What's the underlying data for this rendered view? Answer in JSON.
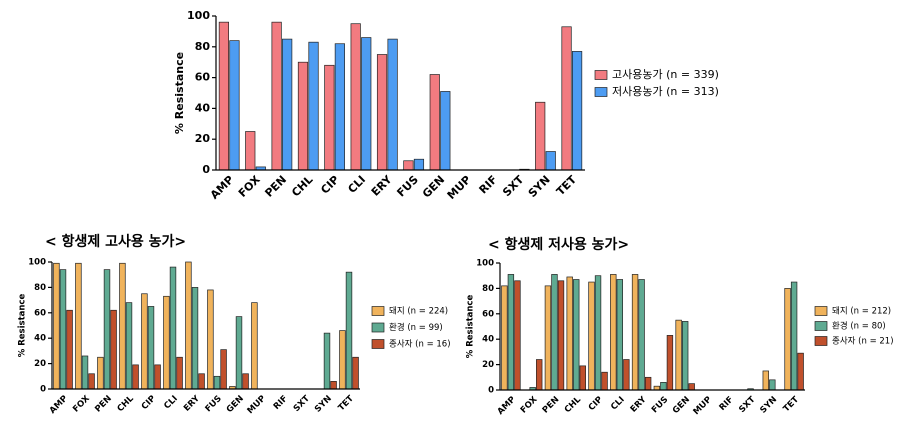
{
  "chart_data": [
    {
      "type": "bar",
      "y_label": "% Resistance",
      "categories": [
        "AMP",
        "FOX",
        "PEN",
        "CHL",
        "CIP",
        "CLI",
        "ERY",
        "FUS",
        "GEN",
        "MUP",
        "RIF",
        "SXT",
        "SYN",
        "TET"
      ],
      "series": [
        {
          "name": "고사용농가 (n = 339)",
          "color": "#f27b80",
          "values": [
            96,
            25,
            96,
            70,
            68,
            95,
            75,
            6,
            62,
            0,
            0,
            0,
            44,
            93
          ]
        },
        {
          "name": "저사용농가 (n = 313)",
          "color": "#4d9cf2",
          "values": [
            84,
            2,
            85,
            83,
            82,
            86,
            85,
            7,
            51,
            0,
            0,
            0.5,
            12,
            77
          ]
        }
      ],
      "ylim": [
        0,
        100
      ],
      "yticks": [
        0,
        20,
        40,
        60,
        80,
        100
      ]
    },
    {
      "type": "bar",
      "title": "< 항생제 고사용 농가>",
      "y_label": "% Resistance",
      "categories": [
        "AMP",
        "FOX",
        "PEN",
        "CHL",
        "CIP",
        "CLI",
        "ERY",
        "FUS",
        "GEN",
        "MUP",
        "RIF",
        "SXT",
        "SYN",
        "TET"
      ],
      "series": [
        {
          "name": "돼지 (n = 224)",
          "color": "#f0b35c",
          "values": [
            99,
            99,
            25,
            99,
            75,
            73,
            100,
            78,
            2,
            68,
            0,
            0,
            0,
            46
          ]
        },
        {
          "name": "환경 (n = 99)",
          "color": "#5faa92",
          "values": [
            94,
            26,
            94,
            68,
            65,
            96,
            80,
            10,
            57,
            0,
            0,
            0,
            44,
            92
          ]
        },
        {
          "name": "종사자 (n = 16)",
          "color": "#c0502c",
          "values": [
            62,
            12,
            62,
            19,
            19,
            25,
            12,
            31,
            12,
            0,
            0,
            0,
            6,
            25
          ]
        }
      ],
      "ylim": [
        0,
        100
      ],
      "yticks": [
        0,
        20,
        40,
        60,
        80,
        100
      ]
    },
    {
      "type": "bar",
      "title": "< 항생제 저사용 농가>",
      "y_label": "% Resistance",
      "categories": [
        "AMP",
        "FOX",
        "PEN",
        "CHL",
        "CIP",
        "CLI",
        "ERY",
        "FUS",
        "GEN",
        "MUP",
        "RIF",
        "SXT",
        "SYN",
        "TET"
      ],
      "series": [
        {
          "name": "돼지 (n = 212)",
          "color": "#f0b35c",
          "values": [
            82,
            0,
            82,
            89,
            85,
            91,
            91,
            3,
            55,
            0,
            0,
            0,
            15,
            80
          ]
        },
        {
          "name": "환경 (n = 80)",
          "color": "#5faa92",
          "values": [
            91,
            2,
            91,
            87,
            90,
            87,
            87,
            6,
            54,
            0,
            0,
            1,
            8,
            85
          ]
        },
        {
          "name": "종사자 (n = 21)",
          "color": "#c0502c",
          "values": [
            86,
            24,
            86,
            19,
            14,
            24,
            10,
            43,
            5,
            0,
            0,
            0,
            0,
            29
          ]
        }
      ],
      "ylim": [
        0,
        100
      ],
      "yticks": [
        0,
        20,
        40,
        60,
        80,
        100
      ]
    }
  ]
}
